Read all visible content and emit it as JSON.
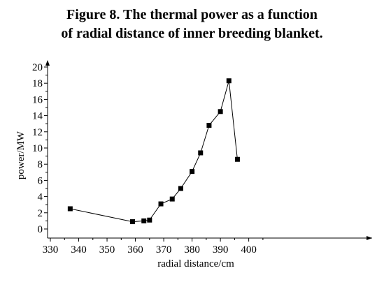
{
  "figure": {
    "title_line1": "Figure 8. The thermal power as a function",
    "title_line2": "of radial distance of inner breeding blanket."
  },
  "chart_data": {
    "type": "line",
    "title": "Figure 8. The thermal power as a function of radial distance of inner breeding blanket.",
    "xlabel": "radial distance/cm",
    "ylabel": "power/MW",
    "xlim": [
      330,
      400
    ],
    "ylim": [
      0,
      20
    ],
    "xticks": [
      330,
      340,
      350,
      360,
      370,
      380,
      390,
      400
    ],
    "yticks": [
      0,
      2,
      4,
      6,
      8,
      10,
      12,
      14,
      16,
      18,
      20
    ],
    "series": [
      {
        "x": [
          337,
          359,
          363,
          365,
          369,
          373,
          376,
          380,
          383,
          386,
          390,
          393,
          396
        ],
        "y": [
          2.5,
          0.9,
          1.0,
          1.1,
          3.1,
          3.7,
          5.0,
          7.1,
          9.4,
          12.8,
          14.5,
          18.3,
          8.6
        ]
      }
    ],
    "color": "#000000",
    "marker": "square"
  }
}
